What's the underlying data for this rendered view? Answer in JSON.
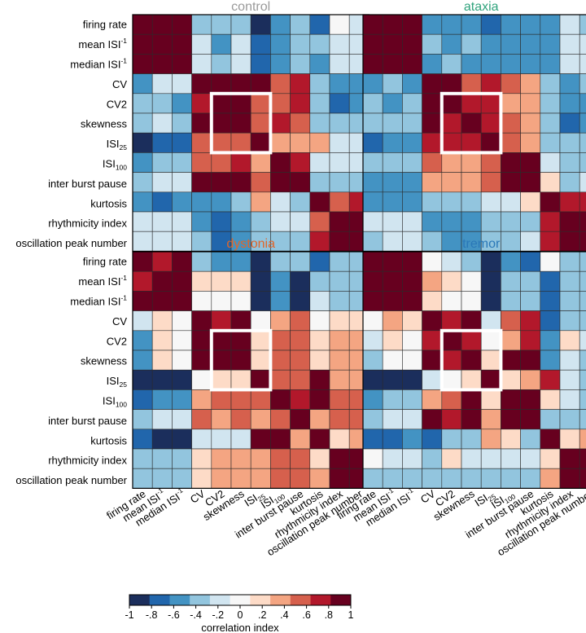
{
  "chart_data": {
    "type": "heatmap",
    "variables": [
      "firing rate",
      "mean ISI",
      "median ISI",
      "CV",
      "CV2",
      "skewness",
      "ISI",
      "ISI",
      "inter burst pause",
      "kurtosis",
      "rhythmicity index",
      "oscillation peak number"
    ],
    "label_suffixes": [
      "",
      "-1",
      "-1",
      "",
      "",
      "",
      "25",
      "100",
      "",
      "",
      "",
      ""
    ],
    "suffix_types": [
      "none",
      "sup",
      "sup",
      "none",
      "none",
      "none",
      "sub",
      "sub",
      "none",
      "none",
      "none",
      "none"
    ],
    "colorbar": {
      "label": "correlation index",
      "range": [
        -1,
        1
      ],
      "ticks": [
        "-1",
        "-.8",
        "-.6",
        "-.4",
        "-.2",
        "0",
        ".2",
        ".4",
        ".6",
        ".8",
        "1"
      ],
      "palette": [
        "#1b2e5c",
        "#2166ac",
        "#4393c3",
        "#92c5de",
        "#d1e5f0",
        "#f7f7f7",
        "#fddbc7",
        "#f4a582",
        "#d6604d",
        "#b2182b",
        "#67001f"
      ]
    },
    "highlight_box": {
      "row_range": [
        4,
        6
      ],
      "col_range": [
        4,
        6
      ]
    },
    "panels": [
      {
        "title": "control",
        "title_color": "#9a9a9a",
        "matrix": [
          [
            1.0,
            0.9,
            0.9,
            -0.3,
            -0.3,
            -0.3,
            -0.95,
            -0.6,
            -0.4,
            -0.7,
            0.0,
            -0.1
          ],
          [
            0.9,
            1.0,
            0.9,
            -0.2,
            -0.5,
            -0.2,
            -0.7,
            -0.5,
            -0.3,
            -0.4,
            -0.1,
            -0.1
          ],
          [
            0.9,
            0.9,
            1.0,
            -0.2,
            -0.3,
            -0.2,
            -0.7,
            -0.5,
            -0.3,
            -0.5,
            -0.1,
            -0.1
          ],
          [
            -0.5,
            -0.1,
            -0.1,
            0.95,
            0.9,
            0.9,
            0.95,
            0.5,
            0.8,
            -0.4,
            -0.6,
            -0.5
          ],
          [
            -0.3,
            -0.4,
            -0.5,
            0.75,
            0.95,
            0.95,
            0.5,
            0.6,
            0.7,
            -0.4,
            -0.7,
            -0.6
          ],
          [
            -0.3,
            -0.2,
            -0.3,
            0.9,
            0.95,
            0.95,
            0.5,
            0.75,
            0.6,
            -0.3,
            -0.3,
            -0.4
          ],
          [
            -0.95,
            -0.7,
            -0.7,
            0.5,
            0.6,
            0.6,
            1.0,
            0.4,
            0.4,
            0.4,
            -0.2,
            -0.2
          ],
          [
            -0.5,
            -0.4,
            -0.4,
            0.6,
            0.6,
            0.8,
            0.45,
            1.0,
            0.8,
            -0.1,
            -0.2,
            -0.2
          ],
          [
            -0.4,
            -0.2,
            -0.2,
            0.95,
            0.85,
            0.9,
            0.6,
            0.85,
            1.0,
            -0.4,
            -0.4,
            -0.4
          ],
          [
            -0.6,
            -0.8,
            -0.6,
            -0.5,
            -0.6,
            -0.3,
            0.4,
            -0.1,
            -0.3,
            1.0,
            0.6,
            0.75
          ],
          [
            -0.1,
            -0.1,
            -0.1,
            -0.5,
            -0.7,
            -0.5,
            -0.3,
            -0.2,
            -0.2,
            0.6,
            1.0,
            0.95
          ],
          [
            -0.1,
            -0.1,
            -0.1,
            -0.4,
            -0.7,
            -0.6,
            -0.3,
            -0.3,
            -0.3,
            0.75,
            0.95,
            1.0
          ]
        ]
      },
      {
        "title": "ataxia",
        "title_color": "#2fa37c",
        "matrix": [
          [
            1.0,
            0.95,
            0.95,
            -0.6,
            -0.5,
            -0.6,
            -0.8,
            -0.5,
            -0.5,
            -0.6,
            -0.2,
            -0.3
          ],
          [
            0.95,
            1.0,
            0.95,
            -0.4,
            -0.5,
            -0.4,
            -0.6,
            -0.5,
            -0.5,
            -0.6,
            -0.2,
            -0.2
          ],
          [
            0.95,
            0.95,
            1.0,
            -0.6,
            -0.4,
            -0.5,
            -0.6,
            -0.5,
            -0.5,
            -0.6,
            -0.2,
            -0.2
          ],
          [
            -0.5,
            -0.3,
            -0.5,
            0.95,
            0.9,
            0.6,
            0.7,
            0.5,
            0.4,
            -0.4,
            -0.5,
            -0.4
          ],
          [
            -0.4,
            -0.5,
            -0.4,
            0.9,
            0.95,
            0.8,
            0.7,
            0.4,
            0.4,
            -0.4,
            -0.5,
            -0.6
          ],
          [
            -0.4,
            -0.4,
            -0.4,
            0.95,
            0.8,
            0.95,
            0.7,
            0.5,
            0.4,
            -0.4,
            -0.7,
            -0.5
          ],
          [
            -0.7,
            -0.5,
            -0.5,
            0.75,
            0.8,
            0.8,
            1.0,
            0.6,
            0.4,
            -0.3,
            -0.3,
            -0.3
          ],
          [
            -0.4,
            -0.4,
            -0.4,
            0.5,
            0.4,
            0.4,
            0.5,
            1.0,
            0.95,
            -0.1,
            -0.3,
            -0.3
          ],
          [
            -0.5,
            -0.5,
            -0.5,
            0.4,
            0.4,
            0.4,
            0.5,
            0.95,
            1.0,
            0.2,
            -0.3,
            -0.2
          ],
          [
            -0.6,
            -0.6,
            -0.5,
            -0.3,
            -0.4,
            -0.4,
            -0.2,
            -0.1,
            0.1,
            1.0,
            0.8,
            0.8
          ],
          [
            -0.2,
            -0.2,
            -0.2,
            -0.5,
            -0.5,
            -0.5,
            -0.4,
            -0.3,
            -0.3,
            0.8,
            1.0,
            0.95
          ],
          [
            -0.3,
            -0.2,
            -0.2,
            -0.4,
            -0.6,
            -0.5,
            -0.3,
            -0.3,
            -0.2,
            0.8,
            0.95,
            1.0
          ]
        ]
      },
      {
        "title": "dystonia",
        "title_color": "#e0662a",
        "matrix": [
          [
            1.0,
            0.8,
            0.9,
            -0.3,
            -0.5,
            -0.5,
            -0.95,
            -0.4,
            -0.3,
            -0.7,
            -0.3,
            -0.3
          ],
          [
            0.8,
            1.0,
            0.95,
            0.1,
            0.1,
            0.1,
            -0.95,
            -0.5,
            -0.9,
            -0.3,
            -0.3,
            -0.3
          ],
          [
            0.9,
            0.95,
            1.0,
            0.0,
            0.0,
            0.0,
            -0.9,
            -0.6,
            -0.9,
            -0.2,
            -0.3,
            -0.3
          ],
          [
            -0.2,
            0.1,
            0.0,
            0.95,
            0.8,
            0.9,
            0.0,
            0.4,
            0.5,
            0.0,
            0.1,
            0.1
          ],
          [
            -0.5,
            0.1,
            0.0,
            0.85,
            0.95,
            0.95,
            0.1,
            0.6,
            0.6,
            0.1,
            0.3,
            0.3
          ],
          [
            -0.5,
            0.1,
            0.0,
            0.9,
            0.95,
            0.95,
            0.1,
            0.6,
            0.6,
            0.1,
            0.3,
            0.3
          ],
          [
            -0.95,
            -0.95,
            -0.9,
            0.0,
            0.1,
            0.1,
            1.0,
            0.6,
            0.6,
            0.95,
            0.4,
            0.4
          ],
          [
            -0.7,
            -0.5,
            -0.6,
            0.4,
            0.6,
            0.6,
            0.5,
            1.0,
            0.7,
            0.85,
            0.6,
            0.6
          ],
          [
            -0.3,
            -0.1,
            -0.2,
            0.5,
            0.4,
            0.5,
            0.4,
            0.6,
            1.0,
            0.4,
            0.5,
            0.5
          ],
          [
            -0.7,
            -0.9,
            -0.9,
            -0.2,
            -0.1,
            -0.1,
            0.95,
            0.85,
            0.4,
            1.0,
            0.2,
            0.3
          ],
          [
            -0.3,
            -0.3,
            -0.3,
            0.1,
            0.3,
            0.3,
            0.4,
            0.6,
            0.5,
            0.2,
            1.0,
            0.95
          ],
          [
            -0.3,
            -0.3,
            -0.3,
            0.1,
            0.3,
            0.3,
            0.4,
            0.6,
            0.5,
            0.3,
            0.95,
            1.0
          ]
        ]
      },
      {
        "title": "tremor",
        "title_color": "#2a78b8",
        "matrix": [
          [
            1.0,
            0.95,
            0.95,
            0.0,
            -0.1,
            -0.3,
            -0.9,
            -0.6,
            -0.7,
            0.0,
            -0.3,
            -0.4
          ],
          [
            0.95,
            1.0,
            0.95,
            0.4,
            0.1,
            0.0,
            -0.9,
            -0.3,
            -0.3,
            -0.7,
            -0.3,
            -0.3
          ],
          [
            0.95,
            0.95,
            1.0,
            0.1,
            0.0,
            0.0,
            -0.9,
            -0.3,
            -0.3,
            -0.7,
            -0.3,
            -0.3
          ],
          [
            0.0,
            0.4,
            0.2,
            0.95,
            0.8,
            0.9,
            -0.1,
            0.6,
            0.7,
            -0.7,
            -0.3,
            -0.3
          ],
          [
            -0.2,
            0.2,
            0.0,
            0.7,
            0.95,
            0.7,
            0.0,
            0.4,
            0.8,
            -0.5,
            0.1,
            -0.2
          ],
          [
            -0.3,
            0.0,
            0.0,
            0.9,
            0.7,
            0.95,
            0.1,
            0.9,
            0.95,
            -0.6,
            -0.2,
            -0.3
          ],
          [
            -0.95,
            -0.95,
            -0.95,
            -0.1,
            0.0,
            0.1,
            1.0,
            0.2,
            0.3,
            0.8,
            -0.2,
            -0.3
          ],
          [
            -0.6,
            -0.3,
            -0.3,
            0.4,
            0.5,
            0.9,
            0.2,
            1.0,
            0.95,
            0.1,
            -0.2,
            -0.3
          ],
          [
            -0.4,
            -0.1,
            -0.1,
            0.85,
            0.8,
            0.9,
            0.3,
            0.95,
            1.0,
            -0.4,
            -0.4,
            -0.4
          ],
          [
            -0.7,
            -0.7,
            -0.6,
            -0.7,
            -0.4,
            -0.4,
            0.4,
            0.1,
            -0.4,
            1.0,
            0.2,
            0.4
          ],
          [
            0.0,
            -0.1,
            -0.1,
            -0.3,
            0.2,
            -0.1,
            -0.2,
            -0.2,
            -0.2,
            0.2,
            1.0,
            0.95
          ],
          [
            -0.3,
            -0.3,
            -0.3,
            -0.3,
            -0.3,
            -0.3,
            -0.3,
            -0.3,
            -0.3,
            0.4,
            0.95,
            1.0
          ]
        ]
      }
    ]
  }
}
